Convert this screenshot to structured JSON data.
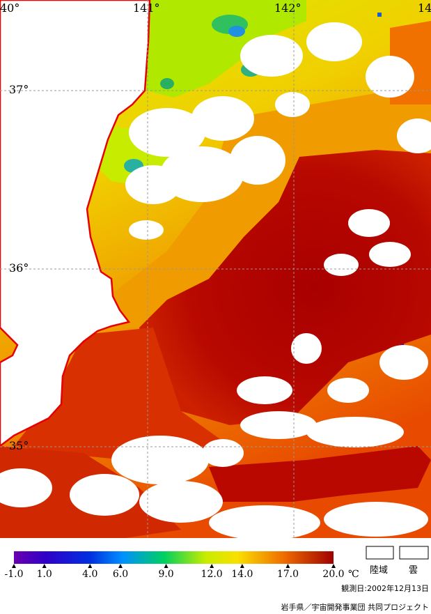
{
  "map": {
    "lon_labels": [
      "40°",
      "141°",
      "142°",
      "14"
    ],
    "lat_labels": [
      "37°",
      "36°",
      "35°"
    ]
  },
  "legend": {
    "ticks": [
      {
        "label": "-1.0",
        "value": -1.0
      },
      {
        "label": "1.0",
        "value": 1.0
      },
      {
        "label": "4.0",
        "value": 4.0
      },
      {
        "label": "6.0",
        "value": 6.0
      },
      {
        "label": "9.0",
        "value": 9.0
      },
      {
        "label": "12.0",
        "value": 12.0
      },
      {
        "label": "14.0",
        "value": 14.0
      },
      {
        "label": "17.0",
        "value": 17.0
      },
      {
        "label": "20.0",
        "value": 20.0
      }
    ],
    "unit": "℃",
    "range": [
      -1.0,
      20.0
    ],
    "land_label": "陸域",
    "cloud_label": "雲",
    "colors": {
      "land": "#ffffff",
      "cloud": "#ffffff",
      "coastline": "#e60000",
      "warm": "#b00000",
      "mid": "#f07a00",
      "cool": "#e8e000",
      "cold": "#00a0ff"
    }
  },
  "caption": {
    "date": "観測日:2002年12月13日",
    "credit": "岩手県／宇宙開発事業団 共同プロジェクト"
  }
}
